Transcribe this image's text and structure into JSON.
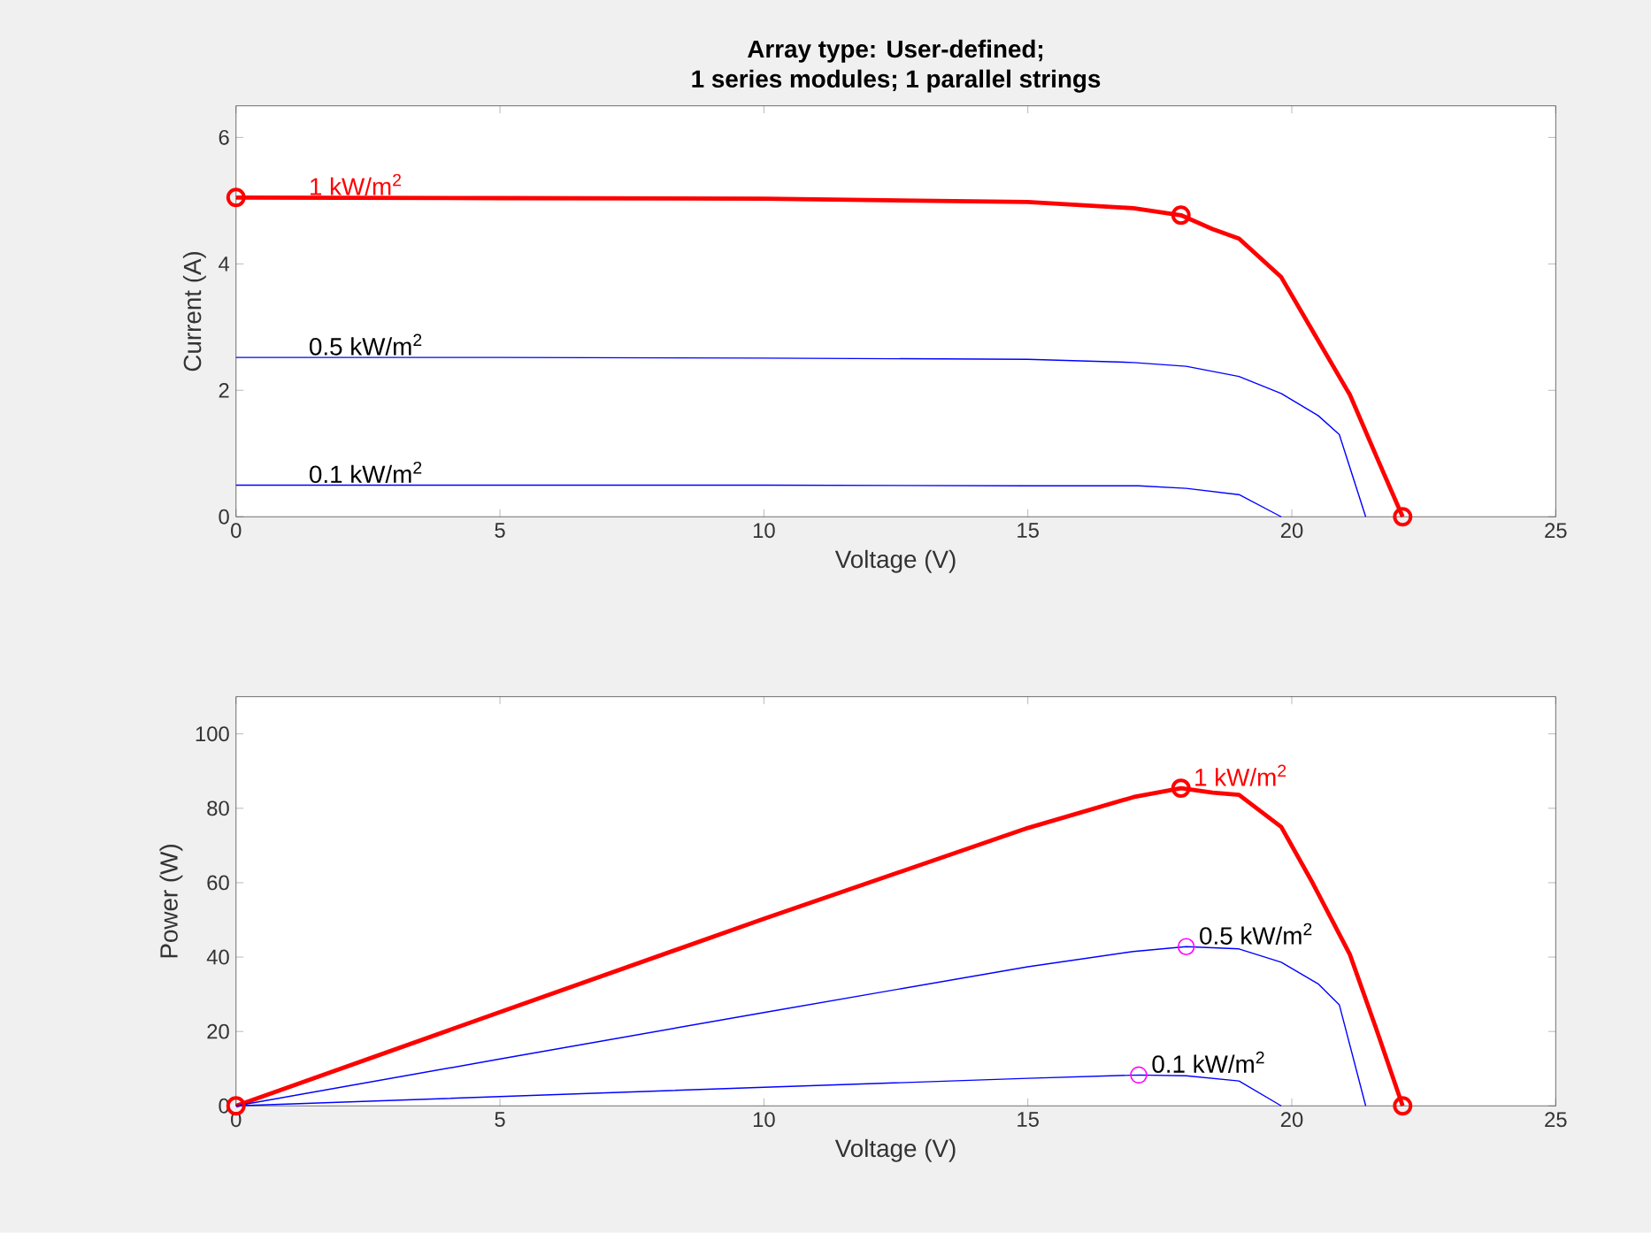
{
  "chart_data": [
    {
      "type": "line",
      "title": "Array type: User-defined;",
      "subtitle": "1 series modules; 1 parallel strings",
      "xlabel": "Voltage (V)",
      "ylabel": "Current (A)",
      "xlim": [
        0,
        25
      ],
      "xticks": [
        0,
        5,
        10,
        15,
        20,
        25
      ],
      "ylim": [
        0,
        6.5
      ],
      "yticks": [
        0,
        2,
        4,
        6
      ],
      "grid": false,
      "series": [
        {
          "name": "1 kW/m$^{2}$",
          "color": "#ff0000",
          "x": [
            0,
            5,
            10,
            15,
            17,
            17.9,
            18.5,
            19,
            19.8,
            20.4,
            21.1,
            21.6,
            22.1
          ],
          "values": [
            5.05,
            5.04,
            5.03,
            4.98,
            4.88,
            4.77,
            4.55,
            4.4,
            3.79,
            2.93,
            1.93,
            0.96,
            0
          ]
        },
        {
          "name": "0.5 kW/m$^{2}$",
          "color": "#0000ff",
          "x": [
            0,
            5,
            10,
            15,
            17,
            18,
            19,
            19.8,
            20.5,
            20.9,
            21.4
          ],
          "values": [
            2.52,
            2.52,
            2.51,
            2.49,
            2.44,
            2.38,
            2.22,
            1.95,
            1.6,
            1.3,
            0
          ]
        },
        {
          "name": "0.1 kW/m$^{2}$",
          "color": "#0000ff",
          "x": [
            0,
            5,
            10,
            15,
            17.1,
            18,
            19,
            19.8
          ],
          "values": [
            0.5,
            0.5,
            0.5,
            0.49,
            0.49,
            0.45,
            0.35,
            0
          ]
        },
        {
          "type": "scatter",
          "marker": "circle",
          "color": "#ff0000",
          "x": [
            0,
            17.9,
            22.1
          ],
          "values": [
            5.05,
            4.77,
            0
          ]
        }
      ]
    },
    {
      "type": "line",
      "xlabel": "Voltage (V)",
      "ylabel": "Power (W)",
      "xlim": [
        0,
        25
      ],
      "xticks": [
        0,
        5,
        10,
        15,
        20,
        25
      ],
      "ylim": [
        0,
        110
      ],
      "yticks": [
        0,
        20,
        40,
        60,
        80,
        100
      ],
      "grid": false,
      "series": [
        {
          "name": "1 kW/m$^{2}$",
          "color": "#ff0000",
          "x": [
            0,
            5,
            10,
            15,
            17,
            17.9,
            18.5,
            19,
            19.8,
            20.4,
            21.1,
            21.6,
            22.1
          ],
          "values": [
            0,
            25.2,
            50.3,
            74.7,
            83.0,
            85.4,
            84.2,
            83.6,
            75.0,
            59.8,
            40.7,
            20.7,
            0
          ]
        },
        {
          "name": "0.5 kW/m$^{2}$",
          "color": "#0000ff",
          "x": [
            0,
            5,
            10,
            15,
            17,
            18,
            19,
            19.8,
            20.5,
            20.9,
            21.4
          ],
          "values": [
            0,
            12.6,
            25.1,
            37.4,
            41.5,
            42.8,
            42.2,
            38.6,
            32.8,
            27.2,
            0
          ]
        },
        {
          "name": "0.1 kW/m$^{2}$",
          "color": "#0000ff",
          "x": [
            0,
            5,
            10,
            15,
            17.1,
            18,
            19,
            19.8
          ],
          "values": [
            0,
            2.5,
            5,
            7.4,
            8.3,
            8.1,
            6.7,
            0
          ]
        },
        {
          "type": "scatter",
          "marker": "circle",
          "color": "#ff0000",
          "x": [
            0,
            17.9,
            22.1
          ],
          "values": [
            0,
            85.4,
            0
          ]
        },
        {
          "type": "scatter",
          "marker": "circle",
          "color": "#ff00ff",
          "x": [
            18,
            17.1
          ],
          "values": [
            42.8,
            8.3
          ]
        }
      ]
    }
  ]
}
